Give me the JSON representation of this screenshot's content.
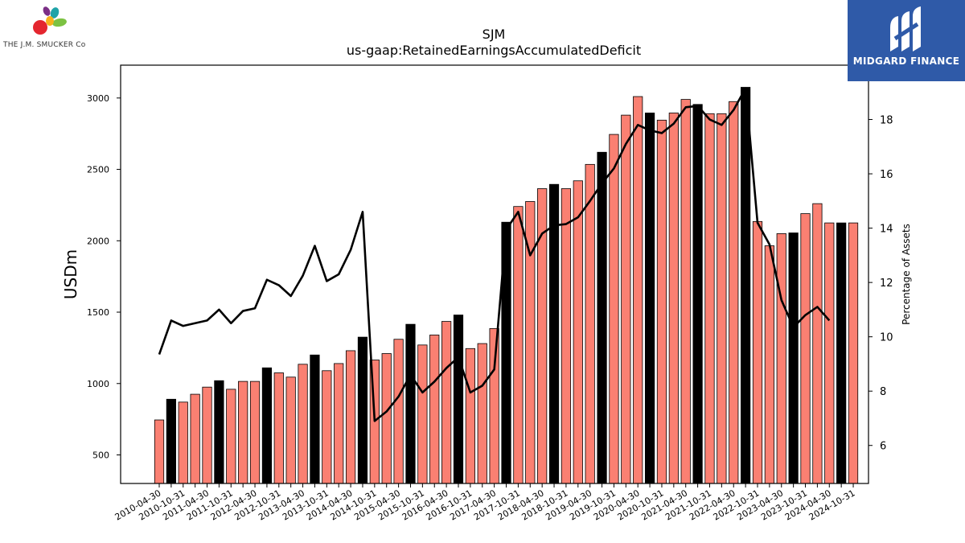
{
  "logos": {
    "left_brand": "THE J.M. SMUCKER Co",
    "right_brand": "MIDGARD FINANCE"
  },
  "colors": {
    "bar_default": "#fa8072",
    "bar_highlight": "#000000",
    "line": "#000000",
    "right_logo_bg": "#2f5aa8"
  },
  "chart_data": {
    "type": "bar",
    "title": "SJM",
    "subtitle": "us-gaap:RetainedEarningsAccumulatedDeficit",
    "ylabel": "USDm",
    "y2label": "Percentage of Assets",
    "ylim": [
      300,
      3230
    ],
    "y2lim": [
      4.6,
      20.0
    ],
    "yticks": [
      500,
      1000,
      1500,
      2000,
      2500,
      3000
    ],
    "y2ticks": [
      6,
      8,
      10,
      12,
      14,
      16,
      18
    ],
    "grid": false,
    "categories": [
      "2010-04-30",
      "2010-07-31",
      "2010-10-31",
      "2011-01-31",
      "2011-04-30",
      "2011-07-31",
      "2011-10-31",
      "2012-01-31",
      "2012-04-30",
      "2012-07-31",
      "2012-10-31",
      "2013-01-31",
      "2013-04-30",
      "2013-07-31",
      "2013-10-31",
      "2014-01-31",
      "2014-04-30",
      "2014-07-31",
      "2014-10-31",
      "2015-01-31",
      "2015-04-30",
      "2015-07-31",
      "2015-10-31",
      "2016-01-31",
      "2016-04-30",
      "2016-07-31",
      "2016-10-31",
      "2017-01-31",
      "2017-04-30",
      "2017-07-31",
      "2017-10-31",
      "2018-01-31",
      "2018-04-30",
      "2018-07-31",
      "2018-10-31",
      "2019-01-31",
      "2019-04-30",
      "2019-07-31",
      "2019-10-31",
      "2020-01-31",
      "2020-04-30",
      "2020-07-31",
      "2020-10-31",
      "2021-01-31",
      "2021-04-30",
      "2021-07-31",
      "2021-10-31",
      "2022-01-31",
      "2022-04-30",
      "2022-07-31",
      "2022-10-31",
      "2023-01-31",
      "2023-04-30",
      "2023-07-31",
      "2023-10-31",
      "2024-01-31",
      "2024-04-30",
      "2024-07-31",
      "2024-10-31"
    ],
    "tick_labels": [
      "2010-04-30",
      "2010-10-31",
      "2011-04-30",
      "2011-10-31",
      "2012-04-30",
      "2012-10-31",
      "2013-04-30",
      "2013-10-31",
      "2014-04-30",
      "2014-10-31",
      "2015-04-30",
      "2015-10-31",
      "2016-04-30",
      "2016-10-31",
      "2017-04-30",
      "2017-10-31",
      "2018-04-30",
      "2018-10-31",
      "2019-04-30",
      "2019-10-31",
      "2020-04-30",
      "2020-10-31",
      "2021-04-30",
      "2021-10-31",
      "2022-04-30",
      "2022-10-31",
      "2023-04-30",
      "2023-10-31",
      "2024-04-30",
      "2024-10-31"
    ],
    "highlight_indices": [
      1,
      5,
      9,
      13,
      17,
      21,
      25,
      29,
      33,
      37,
      41,
      45,
      49,
      53,
      57
    ],
    "series": [
      {
        "axis": "left",
        "type": "bar",
        "values": [
          745,
          890,
          870,
          925,
          975,
          1020,
          960,
          1015,
          1015,
          1110,
          1075,
          1045,
          1135,
          1200,
          1090,
          1140,
          1230,
          1325,
          1165,
          1210,
          1310,
          1415,
          1270,
          1340,
          1435,
          1480,
          1245,
          1280,
          1385,
          2130,
          2240,
          2275,
          2365,
          2395,
          2365,
          2420,
          2535,
          2620,
          2745,
          2880,
          3010,
          2895,
          2845,
          2895,
          2990,
          2955,
          2890,
          2890,
          2975,
          3075,
          2135,
          1965,
          2050,
          2055,
          2190,
          2260,
          2125,
          2125,
          2125
        ]
      },
      {
        "axis": "right",
        "type": "line",
        "values": [
          9.35,
          10.6,
          10.4,
          10.5,
          10.6,
          11.0,
          10.5,
          10.95,
          11.05,
          12.1,
          11.9,
          11.5,
          12.25,
          13.35,
          12.05,
          12.3,
          13.2,
          14.6,
          6.9,
          7.25,
          7.8,
          8.6,
          7.95,
          8.35,
          8.85,
          9.25,
          7.95,
          8.2,
          8.8,
          13.95,
          14.6,
          13.0,
          13.8,
          14.1,
          14.15,
          14.4,
          15.0,
          15.65,
          16.2,
          17.1,
          17.8,
          17.6,
          17.5,
          17.85,
          18.45,
          18.5,
          18.0,
          17.8,
          18.35,
          19.15,
          14.2,
          13.4,
          11.35,
          10.35,
          10.8,
          11.1,
          10.6,
          null,
          null
        ]
      }
    ]
  }
}
